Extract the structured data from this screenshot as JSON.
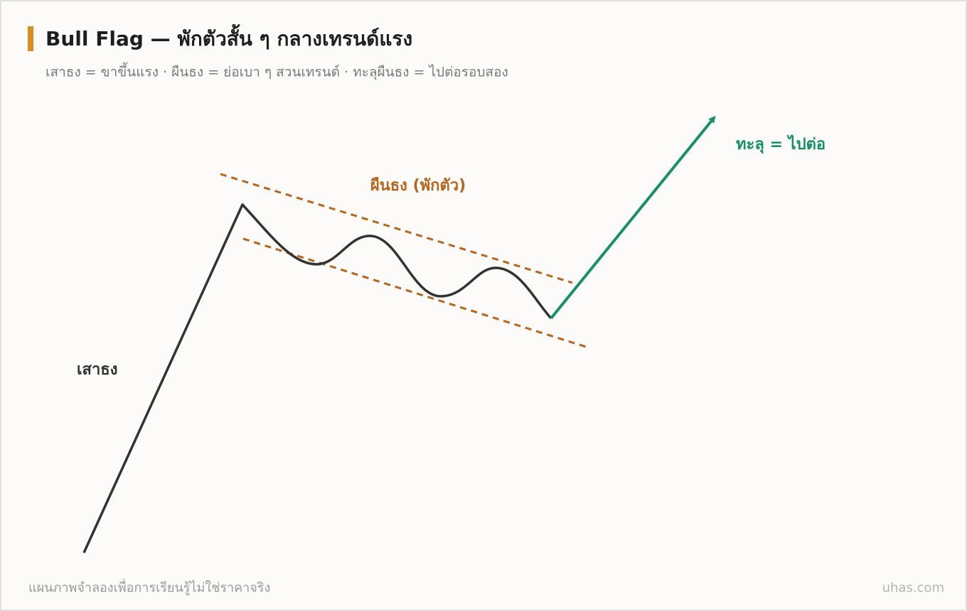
{
  "header": {
    "title": "Bull Flag — พักตัวสั้น ๆ กลางเทรนด์แรง",
    "subtitle": "เสาธง = ขาขึ้นแรง · ผืนธง = ย่อเบา ๆ สวนเทรนด์ · ทะลุผืนธง = ไปต่อรอบสอง"
  },
  "labels": {
    "pole": "เสาธง",
    "flag": "ผืนธง (พักตัว)",
    "breakout": "ทะลุ = ไปต่อ"
  },
  "footer": {
    "note": "แผนภาพจำลองเพื่อการเรียนรู้ไม่ใช่ราคาจริง",
    "brand": "uhas.com"
  }
}
